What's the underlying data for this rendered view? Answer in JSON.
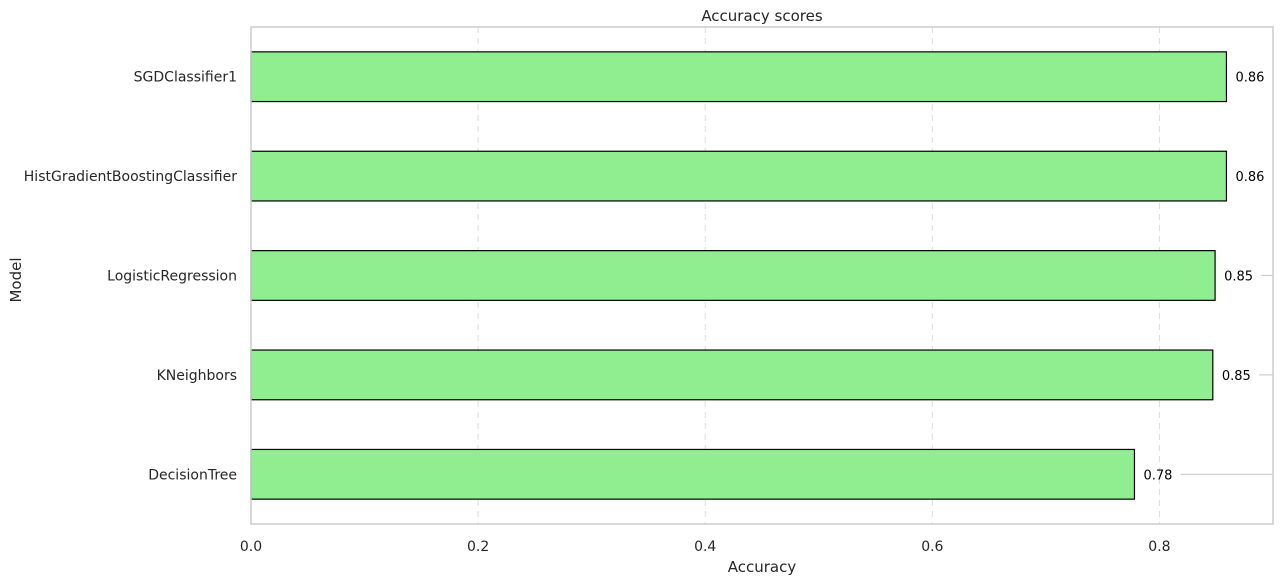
{
  "chart_data": {
    "type": "bar",
    "orientation": "horizontal",
    "title": "Accuracy scores",
    "xlabel": "Accuracy",
    "ylabel": "Model",
    "categories": [
      "SGDClassifier1",
      "HistGradientBoostingClassifier",
      "LogisticRegression",
      "KNeighbors",
      "DecisionTree"
    ],
    "values": [
      0.859,
      0.859,
      0.849,
      0.847,
      0.778
    ],
    "value_labels": [
      "0.86",
      "0.86",
      "0.85",
      "0.85",
      "0.78"
    ],
    "xlim": [
      0,
      0.9
    ],
    "xticks": [
      0.0,
      0.2,
      0.4,
      0.6,
      0.8
    ],
    "xtick_labels": [
      "0.0",
      "0.2",
      "0.4",
      "0.6",
      "0.8"
    ],
    "grid": "x-dashed",
    "legend": "none",
    "colors": {
      "bar_fill": "#90ee90",
      "bar_edge": "#000000"
    }
  }
}
